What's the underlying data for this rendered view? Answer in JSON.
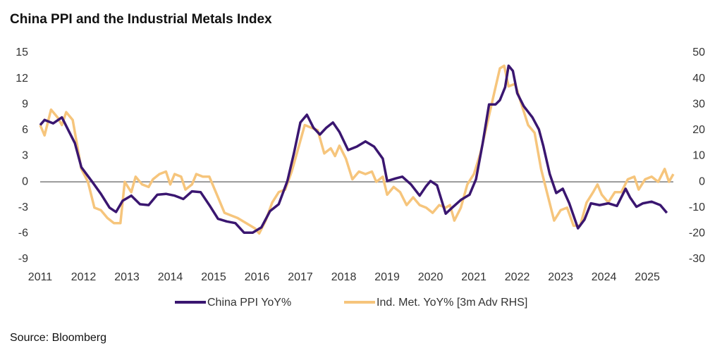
{
  "chart_data": {
    "type": "line",
    "title": "China PPI and the Industrial Metals Index",
    "source": "Source: Bloomberg",
    "xlim": [
      2011,
      2025.6
    ],
    "xticks": [
      2011,
      2012,
      2013,
      2014,
      2015,
      2016,
      2017,
      2018,
      2019,
      2020,
      2021,
      2022,
      2023,
      2024,
      2025
    ],
    "ylim": [
      -9,
      15
    ],
    "yticks": [
      15,
      12,
      9,
      6,
      3,
      0,
      -3,
      -6,
      -9
    ],
    "y2lim": [
      -30,
      50
    ],
    "y2ticks": [
      50,
      40,
      30,
      20,
      10,
      0,
      -10,
      -20,
      -30
    ],
    "legend": "bottom",
    "series": [
      {
        "name": "China PPI YoY%",
        "color": "#3a1670",
        "x": [
          2011.0,
          2011.1,
          2011.3,
          2011.5,
          2011.6,
          2011.8,
          2011.95,
          2012.2,
          2012.4,
          2012.6,
          2012.75,
          2012.9,
          2013.1,
          2013.3,
          2013.5,
          2013.7,
          2013.9,
          2014.1,
          2014.3,
          2014.5,
          2014.7,
          2014.9,
          2015.1,
          2015.3,
          2015.5,
          2015.7,
          2015.9,
          2016.1,
          2016.3,
          2016.5,
          2016.7,
          2016.85,
          2017.0,
          2017.15,
          2017.3,
          2017.45,
          2017.6,
          2017.75,
          2017.9,
          2018.1,
          2018.3,
          2018.5,
          2018.7,
          2018.9,
          2019.0,
          2019.2,
          2019.35,
          2019.55,
          2019.75,
          2019.9,
          2020.0,
          2020.15,
          2020.35,
          2020.5,
          2020.7,
          2020.9,
          2021.05,
          2021.2,
          2021.35,
          2021.5,
          2021.6,
          2021.72,
          2021.8,
          2021.9,
          2022.0,
          2022.15,
          2022.35,
          2022.5,
          2022.6,
          2022.75,
          2022.9,
          2023.05,
          2023.2,
          2023.4,
          2023.55,
          2023.7,
          2023.9,
          2024.1,
          2024.3,
          2024.5,
          2024.6,
          2024.75,
          2024.9,
          2025.1,
          2025.3,
          2025.45
        ],
        "values": [
          6.6,
          7.2,
          6.8,
          7.5,
          6.5,
          4.5,
          1.7,
          0,
          -1.4,
          -3.0,
          -3.5,
          -2.2,
          -1.6,
          -2.6,
          -2.7,
          -1.5,
          -1.4,
          -1.6,
          -2.0,
          -1.1,
          -1.2,
          -2.7,
          -4.3,
          -4.6,
          -4.8,
          -5.9,
          -5.9,
          -5.3,
          -3.4,
          -2.6,
          0.1,
          3.3,
          6.9,
          7.8,
          6.3,
          5.5,
          6.3,
          6.9,
          5.8,
          3.7,
          4.1,
          4.7,
          4.1,
          2.7,
          0.1,
          0.4,
          0.6,
          -0.3,
          -1.6,
          -0.5,
          0.1,
          -0.4,
          -3.7,
          -3.0,
          -2.1,
          -1.5,
          0.3,
          4.4,
          9.0,
          9.0,
          9.5,
          11.0,
          13.5,
          12.9,
          10.3,
          8.8,
          7.5,
          6.1,
          4.2,
          0.9,
          -1.3,
          -0.8,
          -2.5,
          -5.4,
          -4.4,
          -2.5,
          -2.7,
          -2.5,
          -2.8,
          -0.8,
          -1.8,
          -2.9,
          -2.5,
          -2.3,
          -2.7,
          -3.6
        ]
      },
      {
        "name": "Ind. Met. YoY% [3m Adv RHS]",
        "color": "#f6c57c",
        "axis": "y2",
        "x": [
          2011.0,
          2011.1,
          2011.25,
          2011.4,
          2011.5,
          2011.6,
          2011.75,
          2011.95,
          2012.1,
          2012.25,
          2012.4,
          2012.55,
          2012.7,
          2012.85,
          2012.95,
          2013.1,
          2013.2,
          2013.35,
          2013.5,
          2013.6,
          2013.75,
          2013.9,
          2014.0,
          2014.1,
          2014.25,
          2014.35,
          2014.5,
          2014.6,
          2014.75,
          2014.9,
          2015.1,
          2015.25,
          2015.4,
          2015.55,
          2015.75,
          2015.95,
          2016.05,
          2016.2,
          2016.35,
          2016.5,
          2016.65,
          2016.8,
          2016.95,
          2017.1,
          2017.25,
          2017.4,
          2017.55,
          2017.7,
          2017.8,
          2017.9,
          2018.05,
          2018.2,
          2018.35,
          2018.5,
          2018.65,
          2018.75,
          2018.9,
          2019.0,
          2019.15,
          2019.3,
          2019.45,
          2019.6,
          2019.75,
          2019.9,
          2020.05,
          2020.2,
          2020.35,
          2020.45,
          2020.55,
          2020.7,
          2020.85,
          2021.0,
          2021.15,
          2021.3,
          2021.45,
          2021.6,
          2021.7,
          2021.8,
          2021.95,
          2022.1,
          2022.25,
          2022.4,
          2022.55,
          2022.7,
          2022.85,
          2023.0,
          2023.15,
          2023.3,
          2023.45,
          2023.6,
          2023.75,
          2023.85,
          2023.95,
          2024.1,
          2024.25,
          2024.4,
          2024.55,
          2024.7,
          2024.8,
          2024.95,
          2025.1,
          2025.25,
          2025.4,
          2025.5,
          2025.6
        ],
        "values": [
          22,
          18,
          28,
          25,
          22,
          27,
          24,
          5,
          0,
          -10,
          -11,
          -14,
          -16,
          -16,
          0,
          -4,
          2,
          -1,
          -2,
          1,
          3,
          4,
          -1,
          3,
          2,
          -3,
          -1,
          3,
          2,
          2,
          -6,
          -12,
          -13,
          -14,
          -16,
          -18,
          -20,
          -15,
          -8,
          -4,
          -3,
          4,
          13,
          22,
          21,
          20,
          11,
          13,
          10,
          14,
          9,
          1,
          4,
          3,
          4,
          0,
          2,
          -5,
          -2,
          -4,
          -9,
          -6,
          -9,
          -10,
          -12,
          -9,
          -10,
          -9,
          -15,
          -10,
          -1,
          3,
          11,
          22,
          33,
          44,
          45,
          37,
          38,
          30,
          22,
          19,
          5,
          -5,
          -15,
          -11,
          -10,
          -17,
          -17,
          -8,
          -4,
          -1,
          -5,
          -8,
          -4,
          -4,
          1,
          2,
          -3,
          1,
          2,
          0,
          5,
          0,
          3
        ]
      }
    ]
  }
}
